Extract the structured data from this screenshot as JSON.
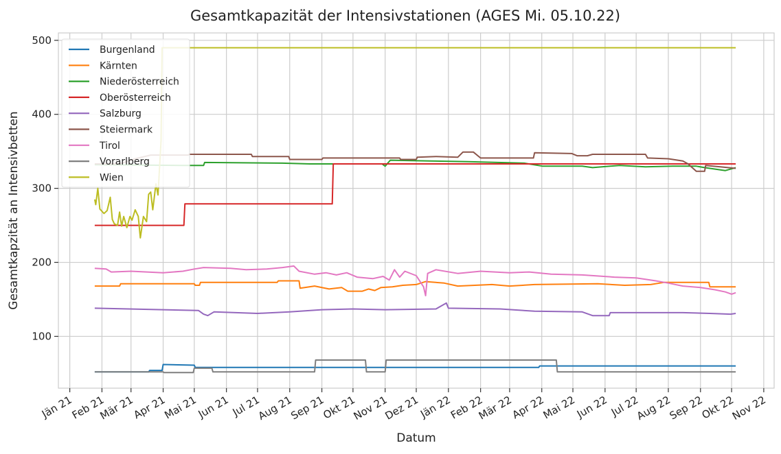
{
  "chart_data": {
    "type": "line",
    "title": "Gesamtkapazität der Intensivstationen (AGES Mi. 05.10.22)",
    "xlabel": "Datum",
    "ylabel": "Gesamtkapzität an Intensivbetten",
    "xlim": [
      "2020-12-21",
      "2022-11-11"
    ],
    "ylim": [
      30,
      510
    ],
    "yticks": [
      100,
      200,
      300,
      400,
      500
    ],
    "xticks": [
      {
        "date": "2021-01-01",
        "label": "Jän 21"
      },
      {
        "date": "2021-02-01",
        "label": "Feb 21"
      },
      {
        "date": "2021-03-01",
        "label": "Mär 21"
      },
      {
        "date": "2021-04-01",
        "label": "Apr 21"
      },
      {
        "date": "2021-05-01",
        "label": "Mai 21"
      },
      {
        "date": "2021-06-01",
        "label": "Jun 21"
      },
      {
        "date": "2021-07-01",
        "label": "Jul 21"
      },
      {
        "date": "2021-08-01",
        "label": "Aug 21"
      },
      {
        "date": "2021-09-01",
        "label": "Sep 21"
      },
      {
        "date": "2021-10-01",
        "label": "Okt 21"
      },
      {
        "date": "2021-11-01",
        "label": "Nov 21"
      },
      {
        "date": "2021-12-01",
        "label": "Dez 21"
      },
      {
        "date": "2022-01-01",
        "label": "Jän 22"
      },
      {
        "date": "2022-02-01",
        "label": "Feb 22"
      },
      {
        "date": "2022-03-01",
        "label": "Mär 22"
      },
      {
        "date": "2022-04-01",
        "label": "Apr 22"
      },
      {
        "date": "2022-05-01",
        "label": "Mai 22"
      },
      {
        "date": "2022-06-01",
        "label": "Jun 22"
      },
      {
        "date": "2022-07-01",
        "label": "Jul 22"
      },
      {
        "date": "2022-08-01",
        "label": "Aug 22"
      },
      {
        "date": "2022-09-01",
        "label": "Sep 22"
      },
      {
        "date": "2022-10-01",
        "label": "Okt 22"
      },
      {
        "date": "2022-11-01",
        "label": "Nov 22"
      }
    ],
    "grid": true,
    "legend_position": "top-left",
    "series": [
      {
        "name": "Burgenland",
        "color": "#1f77b4",
        "points": [
          [
            "2021-01-25",
            52
          ],
          [
            "2021-03-18",
            52
          ],
          [
            "2021-03-19",
            54
          ],
          [
            "2021-03-31",
            54
          ],
          [
            "2021-04-01",
            62
          ],
          [
            "2021-05-01",
            61
          ],
          [
            "2021-05-02",
            58
          ],
          [
            "2022-03-29",
            58
          ],
          [
            "2022-03-30",
            60
          ],
          [
            "2022-10-05",
            60
          ]
        ]
      },
      {
        "name": "Kärnten",
        "color": "#ff7f0e",
        "points": [
          [
            "2021-01-25",
            168
          ],
          [
            "2021-02-18",
            168
          ],
          [
            "2021-02-19",
            171
          ],
          [
            "2021-05-01",
            171
          ],
          [
            "2021-05-02",
            169
          ],
          [
            "2021-05-06",
            169
          ],
          [
            "2021-05-07",
            173
          ],
          [
            "2021-07-20",
            173
          ],
          [
            "2021-07-21",
            175
          ],
          [
            "2021-08-10",
            175
          ],
          [
            "2021-08-11",
            165
          ],
          [
            "2021-08-25",
            168
          ],
          [
            "2021-09-08",
            164
          ],
          [
            "2021-09-20",
            166
          ],
          [
            "2021-09-26",
            161
          ],
          [
            "2021-10-10",
            161
          ],
          [
            "2021-10-16",
            164
          ],
          [
            "2021-10-22",
            162
          ],
          [
            "2021-10-28",
            166
          ],
          [
            "2021-11-08",
            167
          ],
          [
            "2021-11-18",
            169
          ],
          [
            "2021-12-01",
            170
          ],
          [
            "2021-12-10",
            174
          ],
          [
            "2021-12-28",
            172
          ],
          [
            "2022-01-10",
            168
          ],
          [
            "2022-02-12",
            170
          ],
          [
            "2022-03-01",
            168
          ],
          [
            "2022-03-25",
            170
          ],
          [
            "2022-05-25",
            171
          ],
          [
            "2022-06-20",
            169
          ],
          [
            "2022-07-15",
            170
          ],
          [
            "2022-07-28",
            173
          ],
          [
            "2022-09-09",
            173
          ],
          [
            "2022-09-10",
            167
          ],
          [
            "2022-10-05",
            167
          ]
        ]
      },
      {
        "name": "Niederösterreich",
        "color": "#2ca02c",
        "points": [
          [
            "2021-01-25",
            332
          ],
          [
            "2021-04-20",
            331
          ],
          [
            "2021-05-10",
            331
          ],
          [
            "2021-05-11",
            335
          ],
          [
            "2021-07-25",
            334
          ],
          [
            "2021-08-20",
            333
          ],
          [
            "2021-10-29",
            333
          ],
          [
            "2021-11-01",
            330
          ],
          [
            "2021-11-06",
            338
          ],
          [
            "2021-12-15",
            337
          ],
          [
            "2022-01-20",
            336
          ],
          [
            "2022-03-15",
            334
          ],
          [
            "2022-04-02",
            330
          ],
          [
            "2022-05-10",
            330
          ],
          [
            "2022-05-20",
            328
          ],
          [
            "2022-06-15",
            331
          ],
          [
            "2022-07-10",
            329
          ],
          [
            "2022-08-05",
            330
          ],
          [
            "2022-08-28",
            330
          ],
          [
            "2022-09-05",
            328
          ],
          [
            "2022-09-25",
            324
          ],
          [
            "2022-10-05",
            328
          ]
        ]
      },
      {
        "name": "Oberösterreich",
        "color": "#d62728",
        "points": [
          [
            "2021-01-25",
            250
          ],
          [
            "2021-04-21",
            250
          ],
          [
            "2021-04-22",
            279
          ],
          [
            "2021-09-11",
            279
          ],
          [
            "2021-09-12",
            333
          ],
          [
            "2022-10-05",
            333
          ]
        ]
      },
      {
        "name": "Salzburg",
        "color": "#9467bd",
        "points": [
          [
            "2021-01-25",
            138
          ],
          [
            "2021-04-01",
            136
          ],
          [
            "2021-05-05",
            135
          ],
          [
            "2021-05-10",
            130
          ],
          [
            "2021-05-14",
            128
          ],
          [
            "2021-05-20",
            133
          ],
          [
            "2021-07-01",
            131
          ],
          [
            "2021-08-01",
            133
          ],
          [
            "2021-09-01",
            136
          ],
          [
            "2021-10-01",
            137
          ],
          [
            "2021-11-01",
            136
          ],
          [
            "2021-12-20",
            137
          ],
          [
            "2021-12-30",
            145
          ],
          [
            "2022-01-01",
            138
          ],
          [
            "2022-02-20",
            137
          ],
          [
            "2022-03-25",
            134
          ],
          [
            "2022-05-10",
            133
          ],
          [
            "2022-05-20",
            128
          ],
          [
            "2022-06-05",
            128
          ],
          [
            "2022-06-06",
            132
          ],
          [
            "2022-08-15",
            132
          ],
          [
            "2022-09-10",
            131
          ],
          [
            "2022-09-30",
            130
          ],
          [
            "2022-10-05",
            131
          ]
        ]
      },
      {
        "name": "Steiermark",
        "color": "#8c564b",
        "points": [
          [
            "2021-01-25",
            333
          ],
          [
            "2021-02-18",
            333
          ],
          [
            "2021-03-05",
            340
          ],
          [
            "2021-03-20",
            345
          ],
          [
            "2021-04-25",
            345
          ],
          [
            "2021-04-26",
            346
          ],
          [
            "2021-06-25",
            346
          ],
          [
            "2021-06-26",
            343
          ],
          [
            "2021-07-31",
            343
          ],
          [
            "2021-08-01",
            339
          ],
          [
            "2021-09-01",
            339
          ],
          [
            "2021-09-02",
            341
          ],
          [
            "2021-11-15",
            341
          ],
          [
            "2021-11-16",
            339
          ],
          [
            "2021-12-01",
            339
          ],
          [
            "2021-12-02",
            342
          ],
          [
            "2021-12-20",
            343
          ],
          [
            "2022-01-10",
            342
          ],
          [
            "2022-01-15",
            349
          ],
          [
            "2022-01-25",
            349
          ],
          [
            "2022-02-01",
            341
          ],
          [
            "2022-03-24",
            341
          ],
          [
            "2022-03-25",
            348
          ],
          [
            "2022-04-30",
            347
          ],
          [
            "2022-05-05",
            344
          ],
          [
            "2022-05-15",
            344
          ],
          [
            "2022-05-20",
            346
          ],
          [
            "2022-07-10",
            346
          ],
          [
            "2022-07-12",
            341
          ],
          [
            "2022-08-01",
            340
          ],
          [
            "2022-08-15",
            337
          ],
          [
            "2022-08-20",
            333
          ],
          [
            "2022-08-28",
            323
          ],
          [
            "2022-09-05",
            323
          ],
          [
            "2022-09-06",
            331
          ],
          [
            "2022-09-20",
            329
          ],
          [
            "2022-10-05",
            327
          ]
        ]
      },
      {
        "name": "Tirol",
        "color": "#e377c2",
        "points": [
          [
            "2021-01-25",
            192
          ],
          [
            "2021-02-05",
            191
          ],
          [
            "2021-02-10",
            187
          ],
          [
            "2021-03-01",
            188
          ],
          [
            "2021-04-01",
            186
          ],
          [
            "2021-04-20",
            188
          ],
          [
            "2021-05-01",
            191
          ],
          [
            "2021-05-10",
            193
          ],
          [
            "2021-06-05",
            192
          ],
          [
            "2021-06-20",
            190
          ],
          [
            "2021-07-10",
            191
          ],
          [
            "2021-07-25",
            193
          ],
          [
            "2021-08-05",
            195
          ],
          [
            "2021-08-10",
            188
          ],
          [
            "2021-08-25",
            184
          ],
          [
            "2021-09-05",
            186
          ],
          [
            "2021-09-15",
            183
          ],
          [
            "2021-09-25",
            186
          ],
          [
            "2021-10-05",
            180
          ],
          [
            "2021-10-20",
            178
          ],
          [
            "2021-10-30",
            181
          ],
          [
            "2021-11-05",
            176
          ],
          [
            "2021-11-10",
            190
          ],
          [
            "2021-11-15",
            180
          ],
          [
            "2021-11-20",
            188
          ],
          [
            "2021-12-01",
            182
          ],
          [
            "2021-12-08",
            167
          ],
          [
            "2021-12-10",
            155
          ],
          [
            "2021-12-12",
            185
          ],
          [
            "2021-12-20",
            190
          ],
          [
            "2022-01-10",
            185
          ],
          [
            "2022-02-01",
            188
          ],
          [
            "2022-03-01",
            186
          ],
          [
            "2022-03-20",
            187
          ],
          [
            "2022-04-10",
            184
          ],
          [
            "2022-05-10",
            183
          ],
          [
            "2022-06-10",
            180
          ],
          [
            "2022-07-01",
            179
          ],
          [
            "2022-07-20",
            175
          ],
          [
            "2022-08-01",
            172
          ],
          [
            "2022-08-15",
            168
          ],
          [
            "2022-09-01",
            166
          ],
          [
            "2022-09-15",
            163
          ],
          [
            "2022-09-25",
            160
          ],
          [
            "2022-10-01",
            157
          ],
          [
            "2022-10-05",
            159
          ]
        ]
      },
      {
        "name": "Vorarlberg",
        "color": "#7f7f7f",
        "points": [
          [
            "2021-01-25",
            52
          ],
          [
            "2021-04-01",
            52
          ],
          [
            "2021-04-02",
            51
          ],
          [
            "2021-04-30",
            51
          ],
          [
            "2021-05-01",
            57
          ],
          [
            "2021-05-18",
            57
          ],
          [
            "2021-05-19",
            52
          ],
          [
            "2021-08-25",
            52
          ],
          [
            "2021-08-26",
            68
          ],
          [
            "2021-10-13",
            68
          ],
          [
            "2021-10-14",
            52
          ],
          [
            "2021-11-01",
            52
          ],
          [
            "2021-11-02",
            68
          ],
          [
            "2022-04-15",
            68
          ],
          [
            "2022-04-16",
            52
          ],
          [
            "2022-10-05",
            52
          ]
        ]
      },
      {
        "name": "Wien",
        "color": "#bcbd22",
        "points": [
          [
            "2021-01-25",
            285
          ],
          [
            "2021-01-26",
            278
          ],
          [
            "2021-01-28",
            300
          ],
          [
            "2021-01-30",
            272
          ],
          [
            "2021-02-03",
            266
          ],
          [
            "2021-02-06",
            270
          ],
          [
            "2021-02-09",
            288
          ],
          [
            "2021-02-11",
            258
          ],
          [
            "2021-02-13",
            252
          ],
          [
            "2021-02-16",
            250
          ],
          [
            "2021-02-18",
            268
          ],
          [
            "2021-02-20",
            249
          ],
          [
            "2021-02-22",
            262
          ],
          [
            "2021-02-25",
            247
          ],
          [
            "2021-02-28",
            262
          ],
          [
            "2021-03-02",
            257
          ],
          [
            "2021-03-05",
            271
          ],
          [
            "2021-03-08",
            262
          ],
          [
            "2021-03-10",
            233
          ],
          [
            "2021-03-13",
            262
          ],
          [
            "2021-03-16",
            255
          ],
          [
            "2021-03-18",
            292
          ],
          [
            "2021-03-20",
            295
          ],
          [
            "2021-03-22",
            271
          ],
          [
            "2021-03-25",
            306
          ],
          [
            "2021-03-27",
            291
          ],
          [
            "2021-03-29",
            340
          ],
          [
            "2021-03-30",
            365
          ],
          [
            "2021-03-31",
            490
          ],
          [
            "2022-10-05",
            490
          ]
        ]
      }
    ]
  }
}
